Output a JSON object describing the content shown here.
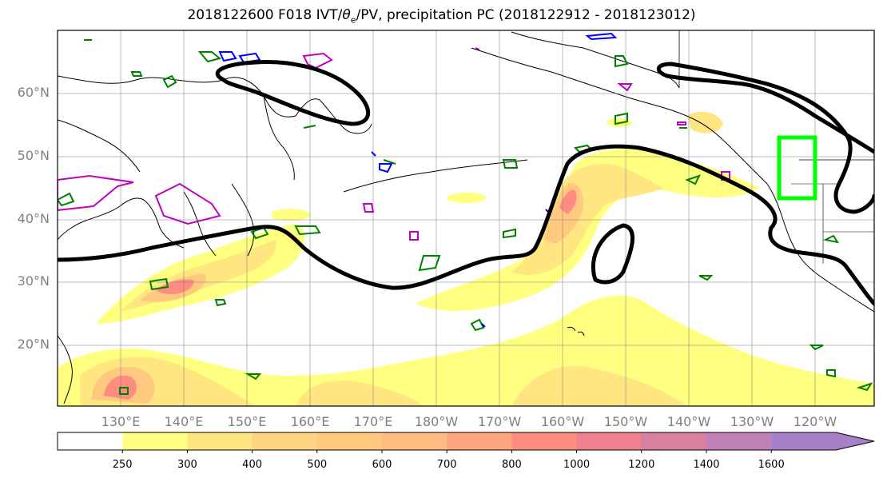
{
  "title": {
    "prefix": "2018122600 F018 IVT/",
    "theta": "θ",
    "theta_sub": "e",
    "suffix": "/PV, precipitation PC (2018122912 - 2018123012)"
  },
  "axes": {
    "lat_labels": [
      "60°N",
      "50°N",
      "40°N",
      "30°N",
      "20°N"
    ],
    "lon_labels": [
      "130°E",
      "140°E",
      "150°E",
      "160°E",
      "170°E",
      "180°W",
      "170°W",
      "160°W",
      "150°W",
      "140°W",
      "130°W",
      "120°W"
    ]
  },
  "colorbar": {
    "tick_labels": [
      "250",
      "300",
      "400",
      "500",
      "600",
      "700",
      "800",
      "1000",
      "1200",
      "1400",
      "1600"
    ],
    "colors": [
      "#ffffff",
      "#ffff80",
      "#ffe680",
      "#ffd380",
      "#ffc980",
      "#ffbb80",
      "#ffa580",
      "#ff8c80",
      "#ee8090",
      "#d880a0",
      "#c080b8",
      "#a880c8"
    ]
  },
  "legend_colors": {
    "contour_black": "#000000",
    "pv_green": "#008000",
    "pv_blue": "#0000ff",
    "pv_magenta": "#c000c0",
    "box_lime": "#00ff00"
  }
}
